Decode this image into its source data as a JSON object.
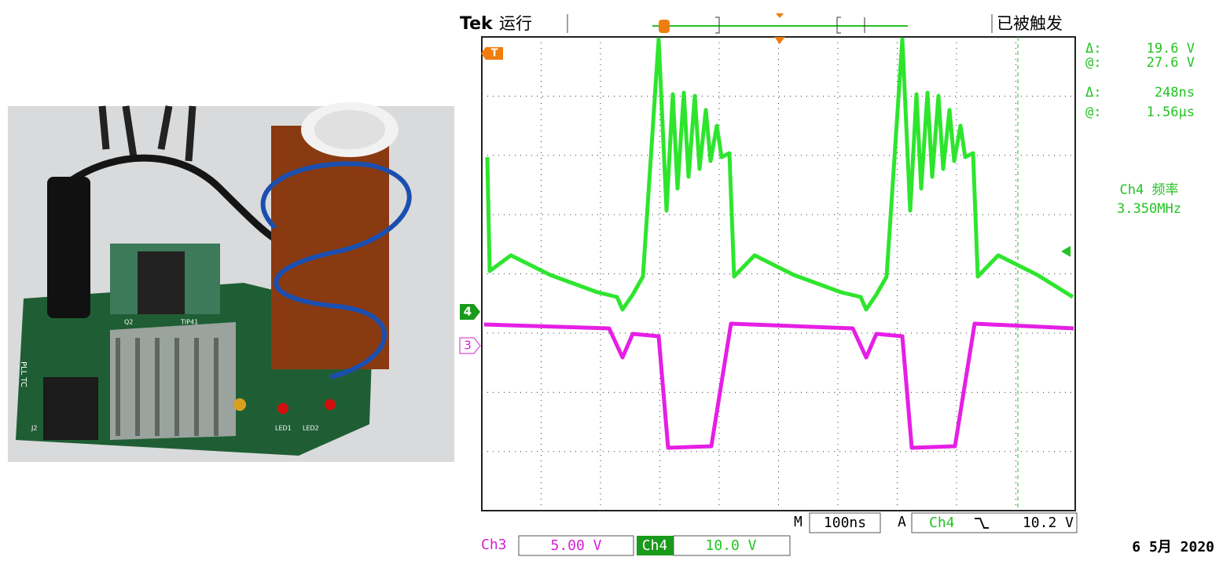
{
  "scope": {
    "header": {
      "brand": "Tek",
      "run_state": "运行",
      "trigger_state": "已被触发"
    },
    "cursor_readout": [
      {
        "label": "Δ:",
        "value": "19.6 V"
      },
      {
        "label": "@:",
        "value": "27.6 V"
      },
      {
        "label": "Δ:",
        "value": "248ns"
      },
      {
        "label": "@:",
        "value": "1.56µs"
      }
    ],
    "measurement": {
      "name": "Ch4 频率",
      "value": "3.350MHz"
    },
    "markers": {
      "trigger": "T",
      "ch4": "4",
      "ch3": "3"
    },
    "timebase": {
      "label": "M",
      "value": "100ns"
    },
    "trigger": {
      "label": "A",
      "source": "Ch4",
      "level": "10.2 V"
    },
    "channels": [
      {
        "name": "Ch3",
        "scale": "5.00 V"
      },
      {
        "name": "Ch4",
        "scale": "10.0 V"
      }
    ],
    "date": "6 5月 2020"
  },
  "photo": {
    "labels": [
      "Q2",
      "TIP41",
      "LED1",
      "LED2",
      "PLL TC",
      "J2"
    ]
  }
}
